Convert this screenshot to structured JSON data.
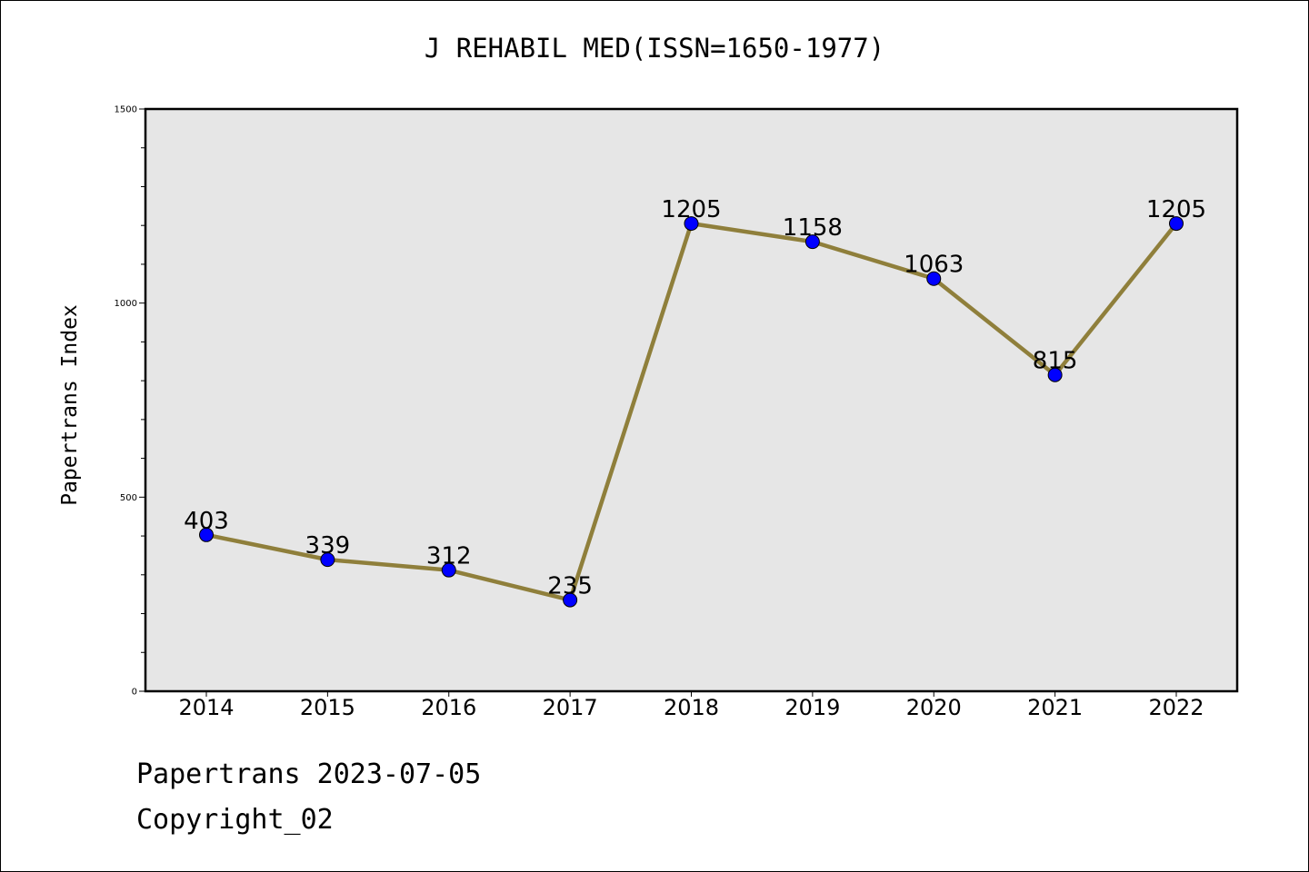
{
  "chart_data": {
    "type": "line",
    "title": "J REHABIL MED(ISSN=1650-1977)",
    "xlabel": "",
    "ylabel": "Papertrans Index",
    "categories": [
      "2014",
      "2015",
      "2016",
      "2017",
      "2018",
      "2019",
      "2020",
      "2021",
      "2022"
    ],
    "series": [
      {
        "name": "Papertrans Index",
        "values": [
          403,
          339,
          312,
          235,
          1205,
          1158,
          1063,
          815,
          1205
        ],
        "data_labels": [
          "403",
          "339",
          "312",
          "235",
          "1205",
          "1158",
          "1063",
          "815",
          "1205"
        ]
      }
    ],
    "ylim": [
      0,
      1500
    ],
    "yticks": [
      "0",
      "500",
      "1000",
      "1500"
    ],
    "grid": false,
    "colors": {
      "line": "#8f7f3b",
      "marker": "#0000ff",
      "plot_background": "#e6e6e6"
    }
  },
  "footer": {
    "line1": "Papertrans 2023-07-05",
    "line2": "Copyright_02"
  }
}
